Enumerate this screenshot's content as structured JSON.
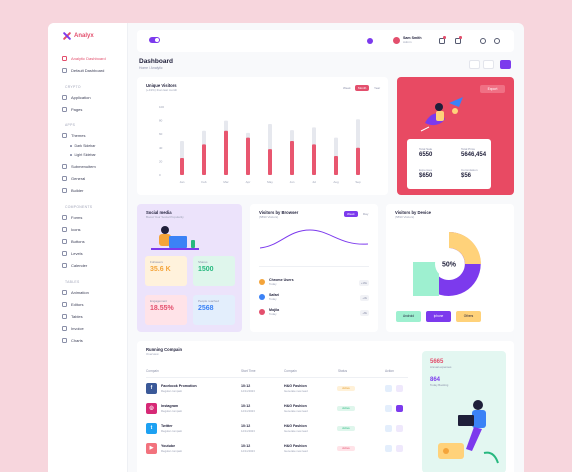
{
  "brand": {
    "name": "Analyx",
    "accent": "#e34f6d",
    "purple": "#7c3aed"
  },
  "sidebar": {
    "top_items": [
      {
        "label": "Analytic Dashboard",
        "icon": "dashboard-icon",
        "active": true
      },
      {
        "label": "Default Dashboard",
        "icon": "dashboard-icon",
        "active": false
      }
    ],
    "sections": [
      {
        "title": "CRYPTO",
        "items": [
          "Application",
          "Pages"
        ]
      },
      {
        "title": "APPS",
        "items": [
          "Themes",
          "Submenuitem",
          "General",
          "Builder"
        ],
        "subitems": [
          "Dark Sidebar",
          "Light Sidebar"
        ]
      },
      {
        "title": "COMPONENTS",
        "items": [
          "Forms",
          "Icons",
          "Buttons",
          "Levels",
          "Calender"
        ]
      },
      {
        "title": "TABLES",
        "items": [
          "Animation",
          "Editors",
          "Tables",
          "Invoice",
          "Charts"
        ]
      }
    ]
  },
  "topbar": {
    "user_name": "Sam Smith",
    "user_role": "Admin"
  },
  "page": {
    "title": "Dashboard",
    "breadcrumb": "Home / Analytic"
  },
  "visitors": {
    "title": "Unique Visitors",
    "subtitle": "(+43%) than last month",
    "filters": [
      "Week",
      "Month",
      "Year"
    ],
    "active_filter": "Month"
  },
  "chart_data": {
    "type": "bar",
    "categories": [
      "Jan",
      "Feb",
      "Mar",
      "Apr",
      "May",
      "Jun",
      "Jul",
      "Aug",
      "Sep"
    ],
    "series": [
      {
        "values": [
          50,
          65,
          80,
          62,
          75,
          66,
          70,
          55,
          82
        ],
        "color": "#e6e8ee"
      },
      {
        "values": [
          25,
          45,
          65,
          55,
          38,
          50,
          45,
          28,
          40
        ],
        "color": "#e8566f"
      }
    ],
    "ylim": [
      0,
      100
    ],
    "yticks": [
      "100",
      "80",
      "60",
      "40",
      "20",
      "0"
    ]
  },
  "export": {
    "button": "Export",
    "stats": [
      {
        "label": "Total Sale",
        "value": "6550"
      },
      {
        "label": "Total Price",
        "value": "5646,454"
      },
      {
        "label": "Expenses",
        "value": "$650"
      },
      {
        "label": "Commission",
        "value": "$56"
      }
    ]
  },
  "social": {
    "title": "Social media",
    "subtitle": "Boost Your Social Popularity",
    "cards": [
      {
        "label": "Followers",
        "value": "35.6 K",
        "color": "#f4a43a",
        "bg": "#fff2dc"
      },
      {
        "label": "Shares",
        "value": "1500",
        "color": "#27b87f",
        "bg": "#dff6ec"
      },
      {
        "label": "Engagement",
        "value": "18.55%",
        "color": "#e34f6d",
        "bg": "#ffe3e8"
      },
      {
        "label": "People reached",
        "value": "2568",
        "color": "#3b82f6",
        "bg": "#e3eefc"
      }
    ]
  },
  "browser": {
    "title": "Visitors by Browser",
    "subtitle": "(5890 Visitors)",
    "filters": [
      "Week",
      "Day"
    ],
    "items": [
      {
        "name": "Chrome Users",
        "sub": "Today",
        "value": "+16k",
        "color": "#f4a43a"
      },
      {
        "name": "Safari",
        "sub": "Today",
        "value": "+3k",
        "color": "#3b82f6"
      },
      {
        "name": "Mojila",
        "sub": "Today",
        "value": "+8k",
        "color": "#e34f6d"
      }
    ]
  },
  "device": {
    "title": "Visitors by Device",
    "subtitle": "(5890 Visitors)",
    "center_label": "50%",
    "buttons": [
      {
        "label": "Android",
        "bg": "#9ef0d0"
      },
      {
        "label": "iphone",
        "bg": "#7c3aed",
        "fg": "#ffffff"
      },
      {
        "label": "Others",
        "bg": "#ffd27a"
      }
    ]
  },
  "campaign": {
    "title": "Running Compain",
    "subtitle": "Overview",
    "headers": [
      "Compain",
      "Start Time",
      "Compain",
      "Status",
      "Action"
    ],
    "rows": [
      {
        "name": "Facebook Promotion",
        "sub": "Regular compain",
        "time": "10:12",
        "date": "12/11/2023",
        "brand": "H&G Fashion",
        "brand_sub": "Generate new lead",
        "status": "Active",
        "status_bg": "#fff1d8",
        "status_fg": "#e39a2a",
        "icon": "facebook-icon",
        "icon_bg": "#3b5998",
        "glyph": "f"
      },
      {
        "name": "Instagram",
        "sub": "Regular compain",
        "time": "10:12",
        "date": "12/11/2023",
        "brand": "H&G Fashion",
        "brand_sub": "Generate new lead",
        "status": "Active",
        "status_bg": "#dff6ec",
        "status_fg": "#27b87f",
        "icon": "instagram-icon",
        "icon_bg": "#d62976",
        "glyph": "◎"
      },
      {
        "name": "Twitter",
        "sub": "Regular compain",
        "time": "10:12",
        "date": "12/11/2023",
        "brand": "H&G Fashion",
        "brand_sub": "Generate new lead",
        "status": "Active",
        "status_bg": "#dff6ec",
        "status_fg": "#27b87f",
        "icon": "twitter-icon",
        "icon_bg": "#1da1f2",
        "glyph": "t"
      },
      {
        "name": "Youtube",
        "sub": "Regular compain",
        "time": "10:12",
        "date": "12/11/2023",
        "brand": "H&G Fashion",
        "brand_sub": "Generate new lead",
        "status": "Active",
        "status_bg": "#ffe3e8",
        "status_fg": "#e34f6d",
        "icon": "youtube-icon",
        "icon_bg": "#f2727d",
        "glyph": "▶"
      }
    ]
  },
  "promo": {
    "kpis": [
      {
        "value": "5665",
        "sub": "Annual expenses",
        "color": "#e34f6d"
      },
      {
        "value": "864",
        "sub": "Today Booking",
        "color": "#7c3aed"
      }
    ]
  }
}
